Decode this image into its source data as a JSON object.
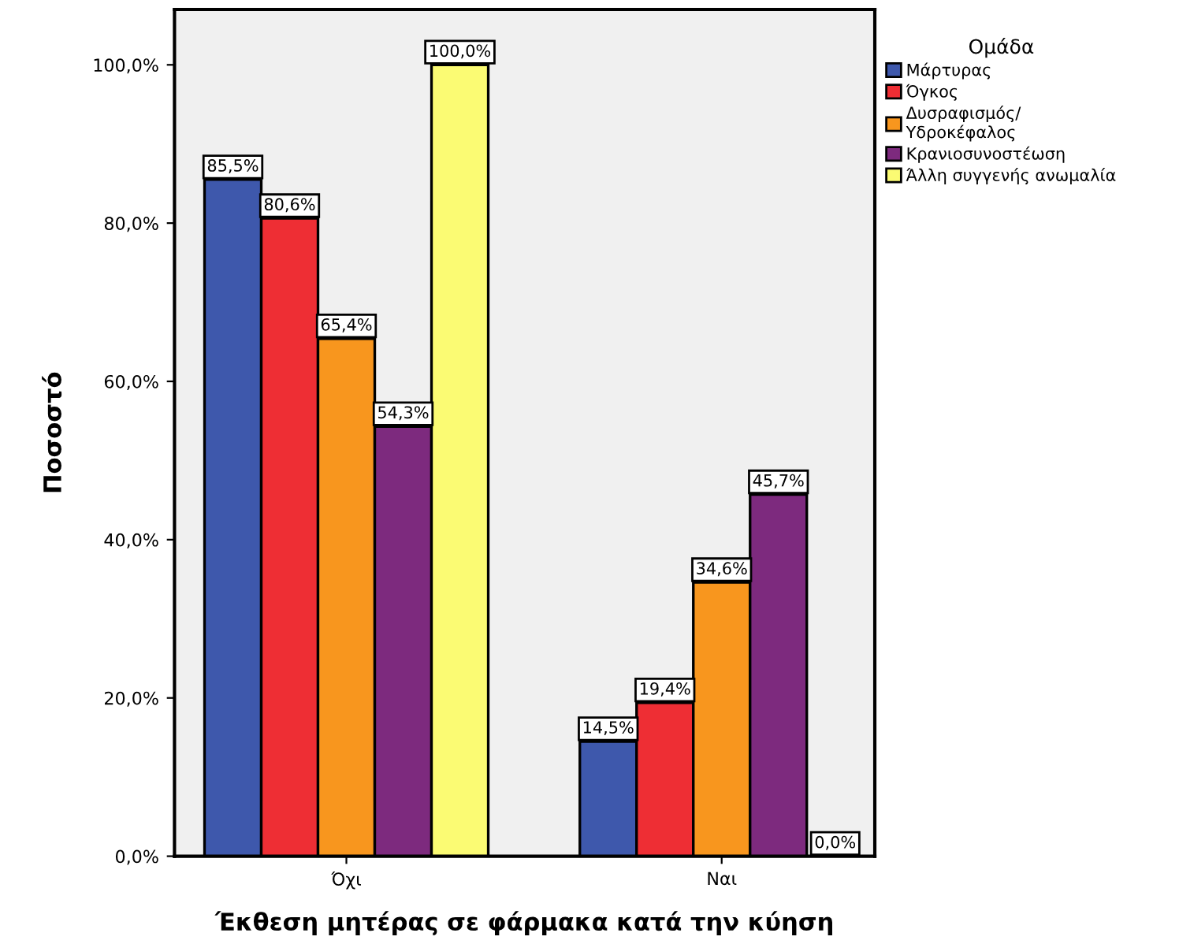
{
  "chart_data": {
    "type": "bar",
    "xlabel": "Έκθεση μητέρας σε φάρμακα κατά την κύηση",
    "ylabel": "Ποσοστό",
    "legend_title": "Ομάδα",
    "categories": [
      "Όχι",
      "Ναι"
    ],
    "series": [
      {
        "name": "Μάρτυρας",
        "color": "#3e58ac",
        "values": [
          85.5,
          14.5
        ],
        "value_labels": [
          "85,5%",
          "14,5%"
        ]
      },
      {
        "name": "Όγκος",
        "color": "#ee2e34",
        "values": [
          80.6,
          19.4
        ],
        "value_labels": [
          "80,6%",
          "19,4%"
        ]
      },
      {
        "name": "Δυσραφισμός/\nΥδροκέφαλος",
        "color": "#f8961e",
        "values": [
          65.4,
          34.6
        ],
        "value_labels": [
          "65,4%",
          "34,6%"
        ]
      },
      {
        "name": "Κρανιοσυνοστέωση",
        "color": "#7d2a7e",
        "values": [
          54.3,
          45.7
        ],
        "value_labels": [
          "54,3%",
          "45,7%"
        ]
      },
      {
        "name": "Άλλη συγγενής ανωμαλία",
        "color": "#fbfb73",
        "values": [
          100.0,
          0.0
        ],
        "value_labels": [
          "100,0%",
          "0,0%"
        ]
      }
    ],
    "ylim": [
      0,
      107
    ],
    "yticks": [
      {
        "value": 0,
        "label": "0,0%"
      },
      {
        "value": 20,
        "label": "20,0%"
      },
      {
        "value": 40,
        "label": "40,0%"
      },
      {
        "value": 60,
        "label": "60,0%"
      },
      {
        "value": 80,
        "label": "80,0%"
      },
      {
        "value": 100,
        "label": "100,0%"
      }
    ],
    "grid": false,
    "legend": "top right"
  }
}
